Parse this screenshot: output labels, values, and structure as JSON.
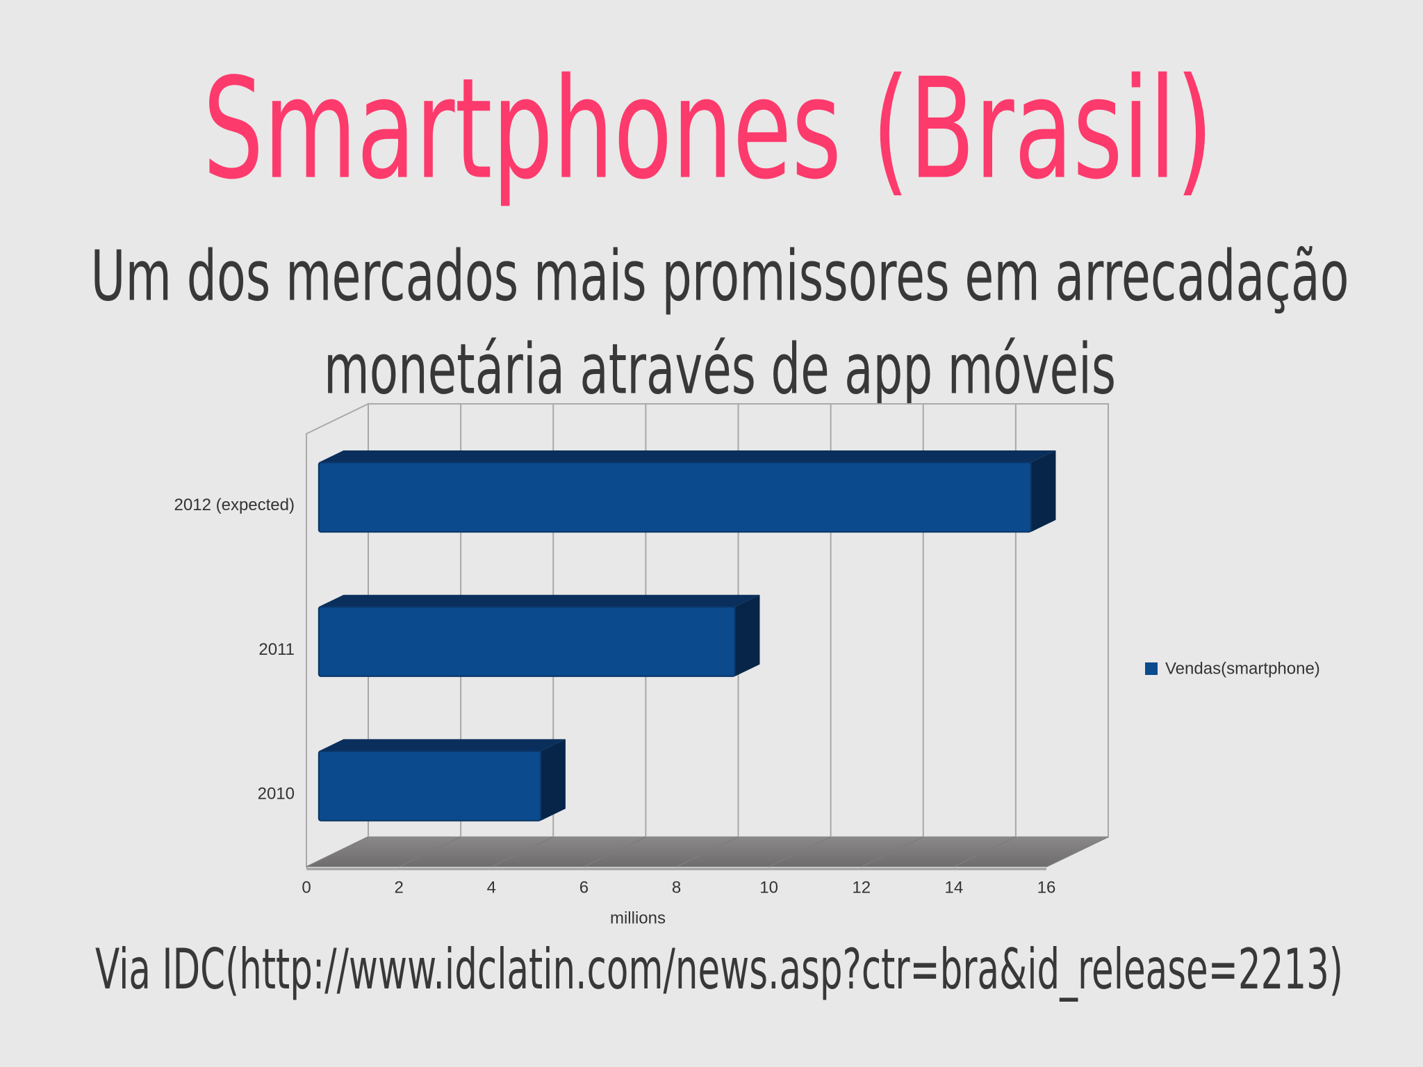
{
  "chart_data": {
    "type": "bar3d",
    "title": "Smartphones (Brasil)",
    "subtitle": [
      "Um dos mercados mais promissores em  arrecadação",
      "monetária através de app móveis"
    ],
    "source": "Via IDC(http://www.idclatin.com/news.asp?ctr=bra&id_release=2213)",
    "x_label": "millions",
    "categories": [
      "2010",
      "2011",
      "2012 (expected)"
    ],
    "series": [
      {
        "name": "Vendas(smartphone)",
        "color": "#0b4a8c",
        "values": [
          4.8,
          9,
          15.4
        ]
      }
    ],
    "xlim": [
      0,
      16
    ],
    "xticks": [
      0,
      2,
      4,
      6,
      8,
      10,
      12,
      14,
      16
    ],
    "grid": true,
    "legend": "right"
  }
}
